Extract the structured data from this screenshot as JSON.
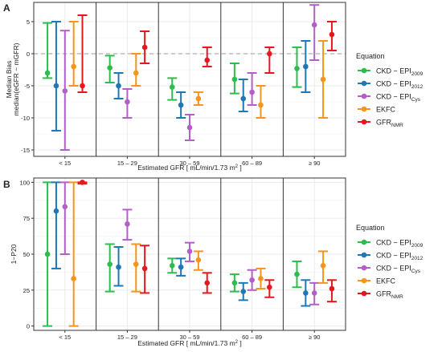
{
  "chart_data": [
    {
      "type": "errorbar",
      "panel_label": "A",
      "ylabel_lines": [
        "Median Bias",
        "median(eGFR − mGFR)"
      ],
      "xlabel": {
        "main": "Estimated GFR  [ mL/min/1.73 m",
        "sup": "2",
        "end": " ]"
      },
      "ylim": [
        -16,
        8
      ],
      "yticks": [
        -15,
        -10,
        -5,
        0,
        5
      ],
      "reference_line": 0,
      "grid": true,
      "categories": [
        "< 15",
        "15 – 29",
        "30 – 59",
        "60 – 89",
        "≥ 90"
      ],
      "legend": {
        "title": "Equation",
        "placement": "right"
      },
      "series": [
        {
          "key": "ckd2009",
          "color": "#2dbd4e",
          "points": [
            [
              -3,
              -3.8,
              4.8
            ],
            [
              -2.2,
              -4.5,
              -0.3
            ],
            [
              -5.2,
              -7.2,
              -3.8
            ],
            [
              -4,
              -6.2,
              -1.5
            ],
            [
              -2.3,
              -5.2,
              1
            ]
          ]
        },
        {
          "key": "ckd2012",
          "color": "#1f77b4",
          "points": [
            [
              -5,
              -12,
              5
            ],
            [
              -5,
              -7,
              -3
            ],
            [
              -8,
              -10,
              -6
            ],
            [
              -7,
              -9,
              -4
            ],
            [
              -2,
              -6,
              2
            ]
          ]
        },
        {
          "key": "ckdcys",
          "color": "#b25fc8",
          "points": [
            [
              -5.8,
              -15,
              3.6
            ],
            [
              -7.5,
              -10,
              -5.5
            ],
            [
              -11.5,
              -13.5,
              -9.5
            ],
            [
              -6,
              -8,
              -3
            ],
            [
              4.5,
              -1,
              7.6
            ]
          ]
        },
        {
          "key": "ekfc",
          "color": "#f7941d",
          "points": [
            [
              -2,
              -5,
              5
            ],
            [
              -3,
              -5,
              0
            ],
            [
              -7,
              -8,
              -6
            ],
            [
              -8,
              -10,
              -5
            ],
            [
              -4,
              -10,
              2
            ]
          ]
        },
        {
          "key": "gfrnmr",
          "color": "#e8171f",
          "points": [
            [
              -5,
              -6,
              6
            ],
            [
              1,
              -1.5,
              3.5
            ],
            [
              -1,
              -2,
              1
            ],
            [
              0,
              -3,
              1
            ],
            [
              3,
              0.5,
              5
            ]
          ]
        }
      ]
    },
    {
      "type": "errorbar",
      "panel_label": "B",
      "ylabel_lines": [
        "1−P20"
      ],
      "xlabel": {
        "main": "Estimated GFR  [ mL/min/1.73 m",
        "sup": "2",
        "end": " ]"
      },
      "ylim": [
        -3,
        103
      ],
      "yticks": [
        0,
        25,
        50,
        75,
        100
      ],
      "grid": true,
      "categories": [
        "< 15",
        "15 – 29",
        "30 – 59",
        "60 – 89",
        "≥ 90"
      ],
      "legend": {
        "title": "Equation",
        "placement": "right"
      },
      "series": [
        {
          "key": "ckd2009",
          "color": "#2dbd4e",
          "points": [
            [
              50,
              0,
              100
            ],
            [
              43,
              24,
              57
            ],
            [
              42,
              37,
              47
            ],
            [
              30,
              24,
              36
            ],
            [
              36,
              27,
              45
            ]
          ]
        },
        {
          "key": "ckd2012",
          "color": "#1f77b4",
          "points": [
            [
              80,
              40,
              100
            ],
            [
              41,
              28,
              55
            ],
            [
              41,
              35,
              47
            ],
            [
              24,
              18,
              30
            ],
            [
              23,
              14,
              32
            ]
          ]
        },
        {
          "key": "ckdcys",
          "color": "#b25fc8",
          "points": [
            [
              83,
              50,
              100
            ],
            [
              71,
              60,
              81
            ],
            [
              52,
              45,
              58
            ],
            [
              32,
              25,
              39
            ],
            [
              23,
              15,
              30
            ]
          ]
        },
        {
          "key": "ekfc",
          "color": "#f7941d",
          "points": [
            [
              33,
              0,
              100
            ],
            [
              43,
              24,
              57
            ],
            [
              46,
              39,
              52
            ],
            [
              33,
              26,
              40
            ],
            [
              42,
              30,
              52
            ]
          ]
        },
        {
          "key": "gfrnmr",
          "color": "#e8171f",
          "points": [
            [
              100,
              99,
              100
            ],
            [
              40,
              23,
              56
            ],
            [
              30,
              23,
              37
            ],
            [
              27,
              20,
              32
            ],
            [
              26,
              17,
              32
            ]
          ]
        }
      ]
    }
  ],
  "legend_entries": [
    {
      "key": "ckd2009",
      "text": "CKD − EPI",
      "sub": "2009",
      "color": "#2dbd4e"
    },
    {
      "key": "ckd2012",
      "text": "CKD − EPI",
      "sub": "2012",
      "color": "#1f77b4"
    },
    {
      "key": "ckdcys",
      "text": "CKD − EPI",
      "sub": "Cys",
      "color": "#b25fc8"
    },
    {
      "key": "ekfc",
      "text": "EKFC",
      "sub": "",
      "color": "#f7941d"
    },
    {
      "key": "gfrnmr",
      "text": "GFR",
      "sub": "NMR",
      "color": "#e8171f"
    }
  ]
}
